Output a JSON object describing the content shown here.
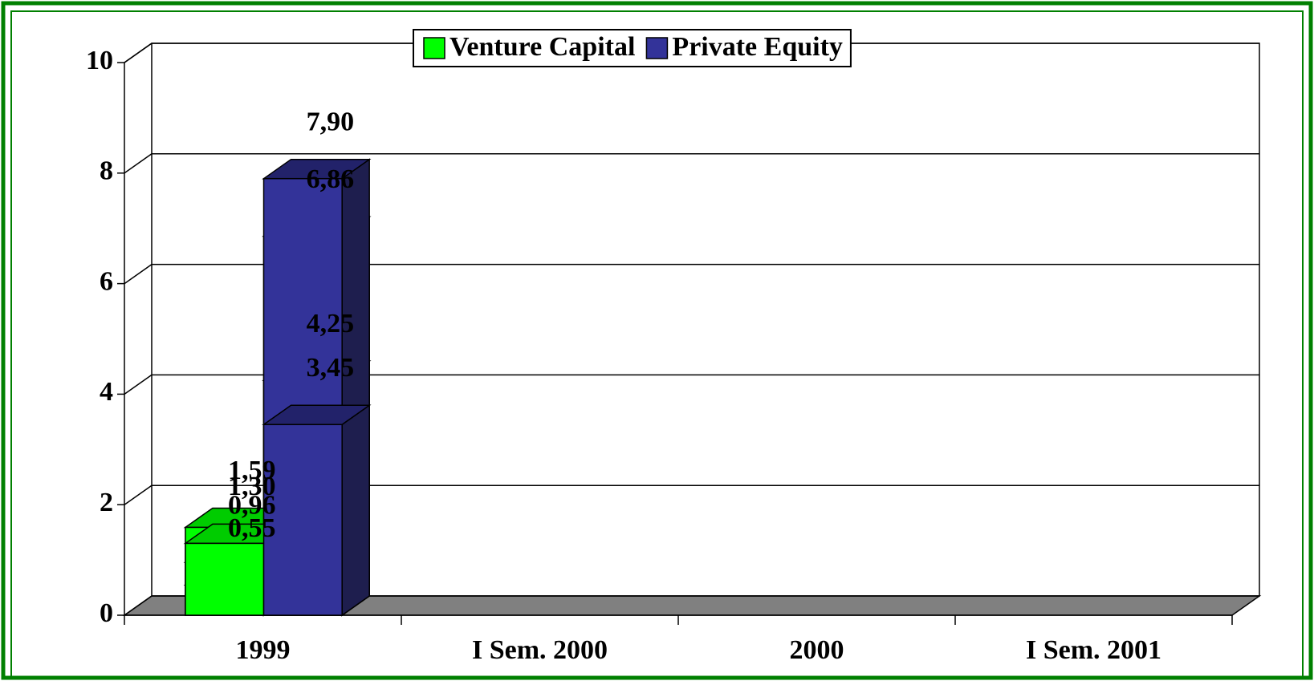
{
  "chart_data": {
    "type": "bar3d",
    "categories": [
      "1999",
      "I Sem. 2000",
      "2000",
      "I Sem. 2001"
    ],
    "series": [
      {
        "name": "Venture Capital",
        "color": "#00ff00",
        "top": "#00cc00",
        "side": "#009900",
        "values": [
          0.96,
          0.55,
          1.59,
          1.3
        ],
        "value_labels": [
          "0,96",
          "0,55",
          "1,59",
          "1,30"
        ]
      },
      {
        "name": "Private Equity",
        "color": "#333399",
        "top": "#22226a",
        "side": "#1e1e4e",
        "values": [
          6.86,
          4.25,
          7.9,
          3.45
        ],
        "value_labels": [
          "6,86",
          "4,25",
          "7,90",
          "3,45"
        ]
      }
    ],
    "ylim": [
      0,
      10
    ],
    "yticks": [
      0,
      2,
      4,
      6,
      8,
      10
    ],
    "grid": true,
    "legend": "top"
  }
}
